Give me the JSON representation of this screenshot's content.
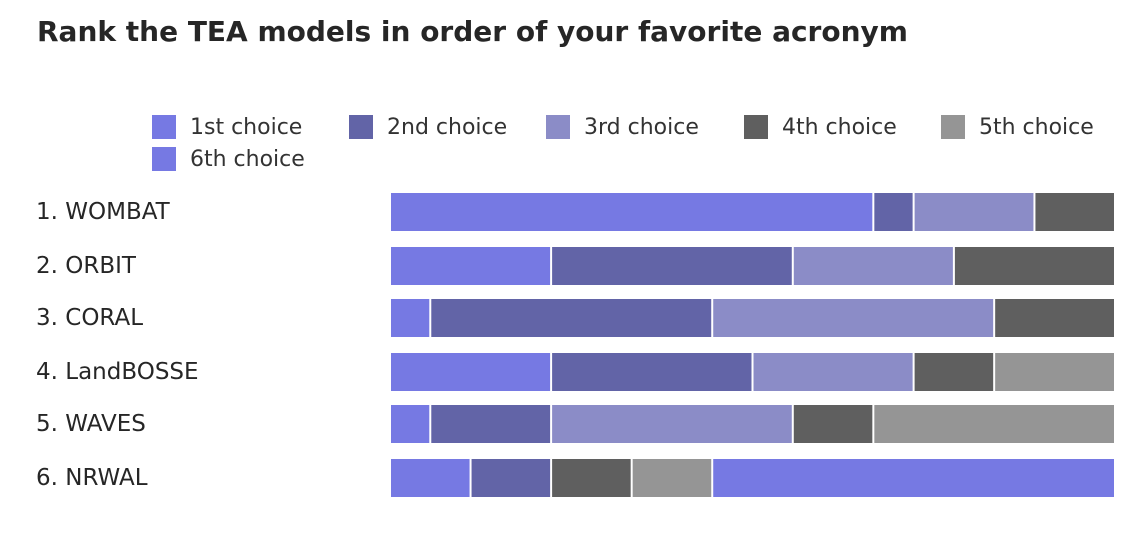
{
  "chart_data": {
    "type": "bar",
    "orientation": "horizontal",
    "stacked": "100%",
    "title": "Rank the TEA models in order of your favorite acronym",
    "categories": [
      "1. WOMBAT",
      "2. ORBIT",
      "3. CORAL",
      "4. LandBOSSE",
      "5. WAVES",
      "6. NRWAL"
    ],
    "series": [
      {
        "name": "1st choice",
        "color": "#7679e3",
        "values": [
          12,
          4,
          1,
          4,
          1,
          2
        ]
      },
      {
        "name": "2nd choice",
        "color": "#6264a7",
        "values": [
          1,
          6,
          7,
          5,
          3,
          2
        ]
      },
      {
        "name": "3rd choice",
        "color": "#8b8cc7",
        "values": [
          3,
          4,
          7,
          4,
          6,
          0
        ]
      },
      {
        "name": "4th choice",
        "color": "#5f5f5f",
        "values": [
          2,
          4,
          3,
          2,
          2,
          2
        ]
      },
      {
        "name": "5th choice",
        "color": "#959595",
        "values": [
          0,
          0,
          0,
          3,
          6,
          2
        ]
      },
      {
        "name": "6th choice",
        "color": "#7679e3",
        "values": [
          0,
          0,
          0,
          0,
          0,
          10
        ]
      }
    ],
    "xlabel": "",
    "ylabel": "",
    "grid": false,
    "legend_position": "top"
  }
}
